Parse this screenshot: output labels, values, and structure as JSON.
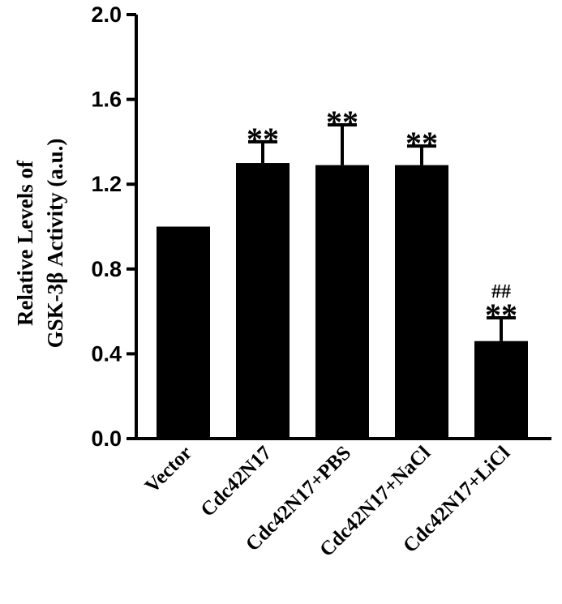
{
  "chart_data": {
    "type": "bar",
    "title": "",
    "xlabel": "",
    "ylabel_lines": [
      "Relative Levels of",
      "GSK-3β Activity (a.u.)"
    ],
    "ylim": [
      0,
      2.0
    ],
    "yticks": [
      "0.0",
      "0.4",
      "0.8",
      "1.2",
      "1.6",
      "2.0"
    ],
    "categories": [
      "Vector",
      "Cdc42N17",
      "Cdc42N17+PBS",
      "Cdc42N17+NaCl",
      "Cdc42N17+LiCl"
    ],
    "values": [
      1.0,
      1.3,
      1.29,
      1.29,
      0.46
    ],
    "errors": [
      0,
      0.1,
      0.19,
      0.09,
      0.11
    ],
    "significance": [
      "",
      "**",
      "**",
      "**",
      "**"
    ],
    "significance2": [
      "",
      "",
      "",
      "",
      "##"
    ],
    "bar_color": "#000000",
    "grid": false,
    "legend": "none"
  }
}
